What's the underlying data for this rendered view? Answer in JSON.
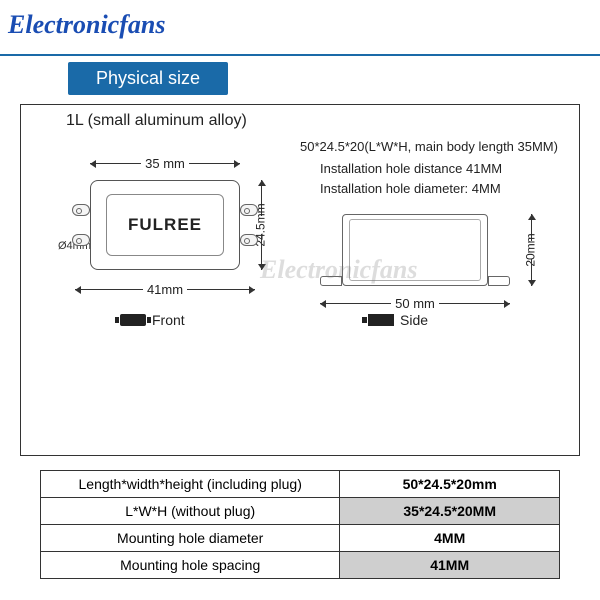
{
  "watermark": "Electronicfans",
  "section_title": "Physical size",
  "subtitle": "1L (small aluminum alloy)",
  "colors": {
    "accent": "#1a6aa8",
    "watermark_blue": "#1a4db3",
    "watermark_gray": "rgba(120,120,120,0.25)",
    "border": "#333333",
    "alt_row_bg": "#cfcfcf"
  },
  "front": {
    "top_dim": "35 mm",
    "bottom_dim": "41mm",
    "height_dim": "24.5mm",
    "hole_diam": "Ø4mm",
    "brand": "FULREE",
    "label": "Front"
  },
  "side": {
    "line1": "50*24.5*20(L*W*H, main body length 35MM)",
    "line2": "Installation hole distance 41MM",
    "line3": "Installation hole diameter: 4MM",
    "width_dim": "50 mm",
    "height_dim": "20mm",
    "label": "Side"
  },
  "table": {
    "rows": [
      {
        "label": "Length*width*height (including plug)",
        "value": "50*24.5*20mm",
        "alt": false
      },
      {
        "label": "L*W*H (without plug)",
        "value": "35*24.5*20MM",
        "alt": true
      },
      {
        "label": "Mounting hole diameter",
        "value": "4MM",
        "alt": false
      },
      {
        "label": "Mounting hole spacing",
        "value": "41MM",
        "alt": true
      }
    ]
  }
}
